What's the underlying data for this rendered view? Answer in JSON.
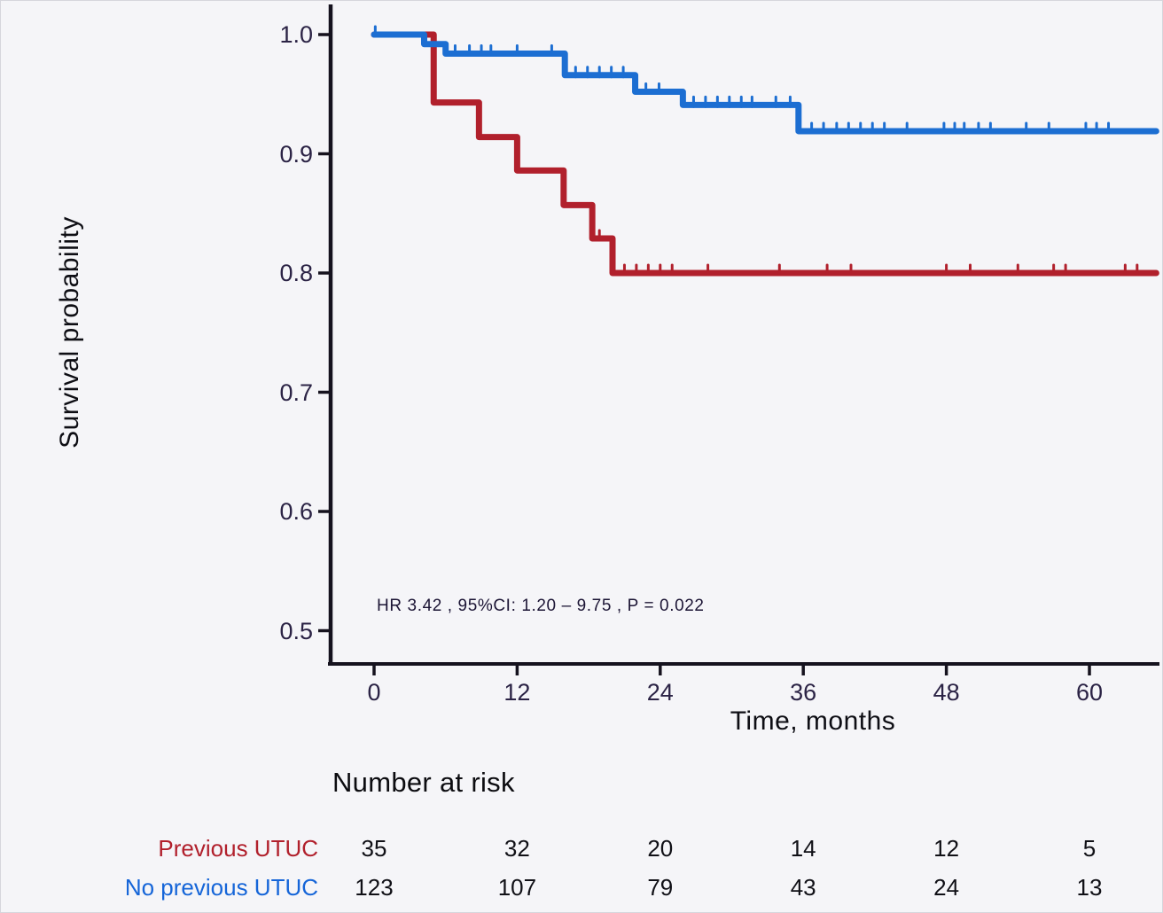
{
  "chart_data": {
    "type": "line",
    "subtype": "kaplan-meier-step",
    "title": "",
    "xlabel": "Time, months",
    "ylabel": "Survival probability",
    "annotation": "HR  3.42 , 95%CI:  1.20 – 9.75 ,  P = 0.022",
    "xticks": [
      0,
      12,
      24,
      36,
      48,
      60
    ],
    "yticks": [
      1.0,
      0.9,
      0.8,
      0.7,
      0.6,
      0.5
    ],
    "xlim": [
      0,
      66
    ],
    "ylim": [
      0.47,
      1.0
    ],
    "grid": false,
    "legend_position": "none",
    "axis_color": "#15121e",
    "tick_label_color": "#2b2345",
    "x_end": 65.6,
    "series": [
      {
        "name": "Previous UTUC",
        "color": "#b1202c",
        "steps": [
          [
            0,
            1.0
          ],
          [
            5,
            0.943
          ],
          [
            8.8,
            0.914
          ],
          [
            12,
            0.886
          ],
          [
            15.9,
            0.857
          ],
          [
            18.3,
            0.829
          ],
          [
            20,
            0.8
          ]
        ],
        "censor_times": [
          18.9,
          21,
          22,
          23,
          24,
          25,
          28,
          34,
          38,
          40,
          48,
          50,
          54,
          57,
          58,
          63,
          64
        ]
      },
      {
        "name": "No previous UTUC",
        "color": "#1c6ed2",
        "steps": [
          [
            0,
            1.0
          ],
          [
            4.2,
            0.992
          ],
          [
            6,
            0.984
          ],
          [
            16,
            0.966
          ],
          [
            21.9,
            0.952
          ],
          [
            25.9,
            0.941
          ],
          [
            35.6,
            0.919
          ]
        ],
        "censor_times": [
          0.1,
          6.8,
          8.0,
          9.0,
          9.8,
          12.0,
          14.9,
          16.9,
          17.9,
          18.9,
          19.9,
          20.9,
          22.8,
          23.9,
          26.8,
          27.8,
          28.8,
          29.8,
          30.8,
          31.7,
          33.7,
          34.9,
          36.7,
          37.7,
          38.8,
          39.8,
          40.8,
          41.8,
          42.8,
          44.7,
          47.8,
          48.7,
          49.5,
          50.7,
          51.7,
          54.7,
          56.6,
          59.7,
          60.6,
          61.6
        ]
      }
    ],
    "risk_table": {
      "title": "Number at risk",
      "time_points": [
        0,
        12,
        24,
        36,
        48,
        60
      ],
      "rows": [
        {
          "label": "Previous UTUC",
          "color": "#b1202c",
          "values": [
            35,
            32,
            20,
            14,
            12,
            5
          ]
        },
        {
          "label": "No previous UTUC",
          "color": "#1565d8",
          "values": [
            123,
            107,
            79,
            43,
            24,
            13
          ]
        }
      ]
    }
  }
}
